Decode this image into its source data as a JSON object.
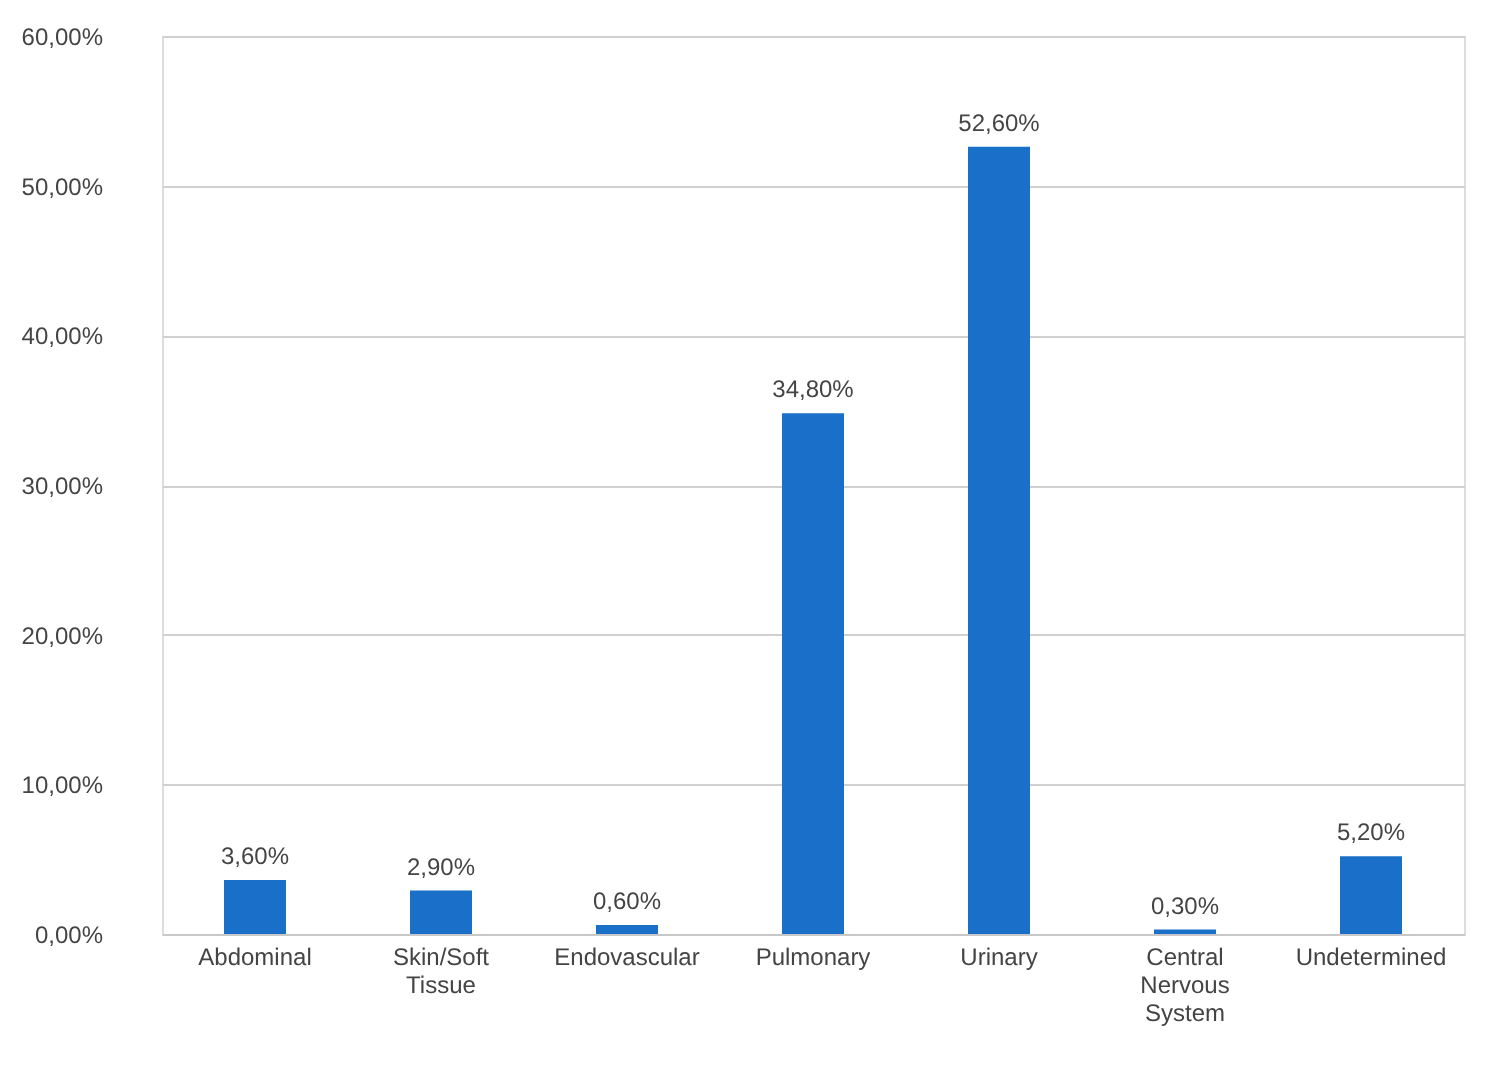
{
  "chart_data": {
    "type": "bar",
    "categories": [
      "Abdominal",
      "Skin/Soft Tissue",
      "Endovascular",
      "Pulmonary",
      "Urinary",
      "Central Nervous System",
      "Undetermined"
    ],
    "values": [
      3.6,
      2.9,
      0.6,
      34.8,
      52.6,
      0.3,
      5.2
    ],
    "value_labels": [
      "3,60%",
      "2,90%",
      "0,60%",
      "34,80%",
      "52,60%",
      "0,30%",
      "5,20%"
    ],
    "color": "#1a6fc9",
    "ylim": [
      0,
      60
    ],
    "yticks": [
      {
        "value": 0,
        "label": "0,00%"
      },
      {
        "value": 10,
        "label": "10,00%"
      },
      {
        "value": 20,
        "label": "20,00%"
      },
      {
        "value": 30,
        "label": "30,00%"
      },
      {
        "value": 40,
        "label": "40,00%"
      },
      {
        "value": 50,
        "label": "50,00%"
      },
      {
        "value": 60,
        "label": "60,00%"
      }
    ],
    "grid": "y"
  }
}
